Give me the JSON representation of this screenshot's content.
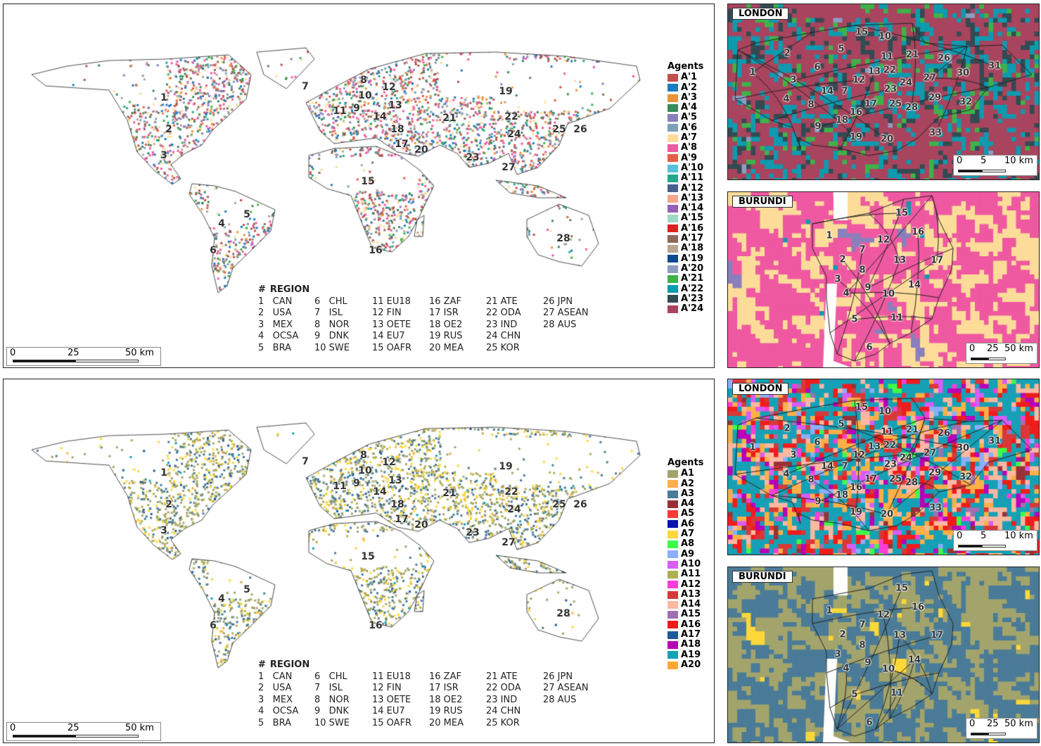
{
  "top_legend": {
    "title": "Agents",
    "items": [
      {
        "label": "A'1",
        "color": "#c0504d"
      },
      {
        "label": "A'2",
        "color": "#1f7bbf"
      },
      {
        "label": "A'3",
        "color": "#e8943a"
      },
      {
        "label": "A'4",
        "color": "#3a8a5c"
      },
      {
        "label": "A'5",
        "color": "#8a7fbc"
      },
      {
        "label": "A'6",
        "color": "#7aa1b5"
      },
      {
        "label": "A'7",
        "color": "#fddc9a"
      },
      {
        "label": "A'8",
        "color": "#ef59a1"
      },
      {
        "label": "A'9",
        "color": "#e85c4a"
      },
      {
        "label": "A'10",
        "color": "#58c0da"
      },
      {
        "label": "A'11",
        "color": "#22a88e"
      },
      {
        "label": "A'12",
        "color": "#4b5f8f"
      },
      {
        "label": "A'13",
        "color": "#f4a58a"
      },
      {
        "label": "A'14",
        "color": "#9460b8"
      },
      {
        "label": "A'15",
        "color": "#9ed8c8"
      },
      {
        "label": "A'16",
        "color": "#e0201f"
      },
      {
        "label": "A'17",
        "color": "#8a6b5a"
      },
      {
        "label": "A'18",
        "color": "#b8a692"
      },
      {
        "label": "A'19",
        "color": "#0c4a8e"
      },
      {
        "label": "A'20",
        "color": "#8e9cc0"
      },
      {
        "label": "A'21",
        "color": "#3fb249"
      },
      {
        "label": "A'22",
        "color": "#0e9aaf"
      },
      {
        "label": "A'23",
        "color": "#344a52"
      },
      {
        "label": "A'24",
        "color": "#a8445e"
      }
    ]
  },
  "bottom_legend": {
    "title": "Agents",
    "items": [
      {
        "label": "A1",
        "color": "#a2a46c"
      },
      {
        "label": "A2",
        "color": "#fcb048"
      },
      {
        "label": "A3",
        "color": "#4a7b97"
      },
      {
        "label": "A4",
        "color": "#983038"
      },
      {
        "label": "A5",
        "color": "#fd3838"
      },
      {
        "label": "A6",
        "color": "#0a10b0"
      },
      {
        "label": "A7",
        "color": "#fdd838"
      },
      {
        "label": "A8",
        "color": "#3efc48"
      },
      {
        "label": "A9",
        "color": "#8caefc"
      },
      {
        "label": "A10",
        "color": "#d85cf8"
      },
      {
        "label": "A11",
        "color": "#b0ae54"
      },
      {
        "label": "A12",
        "color": "#fc3cd8"
      },
      {
        "label": "A13",
        "color": "#d83838"
      },
      {
        "label": "A14",
        "color": "#fcb8a0"
      },
      {
        "label": "A15",
        "color": "#a070b0"
      },
      {
        "label": "A16",
        "color": "#f01c1c"
      },
      {
        "label": "A17",
        "color": "#1c5a98"
      },
      {
        "label": "A18",
        "color": "#b800b8"
      },
      {
        "label": "A19",
        "color": "#17a0b5"
      },
      {
        "label": "A20",
        "color": "#fca838"
      }
    ]
  },
  "region_table": {
    "header_num": "#",
    "header_label": "REGION",
    "columns": [
      [
        "1   CAN",
        "2   USA",
        "3   MEX",
        "4   OCSA",
        "5   BRA"
      ],
      [
        "6   CHL",
        "7   ISL",
        "8   NOR",
        "9   DNK",
        "10 SWE"
      ],
      [
        "11 EU18",
        "12 FIN",
        "13 OETE",
        "14 EU7",
        "15 OAFR"
      ],
      [
        "16 ZAF",
        "17 ISR",
        "18 OE2",
        "19 RUS",
        "20 MEA"
      ],
      [
        "21 ATE",
        "22 ODA",
        "23 IND",
        "24 CHN",
        "25 KOR"
      ],
      [
        "26 JPN",
        "27 ASEAN",
        "28 AUS"
      ]
    ]
  },
  "world_scale": {
    "ticks": [
      "0",
      "25",
      "50 km"
    ]
  },
  "london_scale": {
    "ticks": [
      "0",
      "5",
      "10 km"
    ]
  },
  "burundi_scale": {
    "ticks": [
      "0",
      "25",
      "50 km"
    ]
  },
  "map_region_labels": [
    "1",
    "2",
    "3",
    "4",
    "5",
    "6",
    "7",
    "8",
    "9",
    "10",
    "11",
    "12",
    "13",
    "14",
    "15",
    "16",
    "17",
    "18",
    "19",
    "20",
    "21",
    "22",
    "23",
    "24",
    "25",
    "26",
    "27",
    "28"
  ],
  "london": {
    "title": "LONDON",
    "boroughs": [
      "1",
      "2",
      "3",
      "4",
      "5",
      "6",
      "7",
      "8",
      "9",
      "10",
      "11",
      "12",
      "13",
      "14",
      "15",
      "16",
      "17",
      "18",
      "19",
      "20",
      "21",
      "22",
      "23",
      "24",
      "25",
      "26",
      "27",
      "28",
      "29",
      "30",
      "31",
      "32",
      "33"
    ]
  },
  "burundi": {
    "title": "BURUNDI",
    "provinces": [
      "1",
      "2",
      "3",
      "4",
      "5",
      "6",
      "7",
      "8",
      "9",
      "10",
      "11",
      "12",
      "13",
      "14",
      "15",
      "16",
      "17"
    ]
  }
}
